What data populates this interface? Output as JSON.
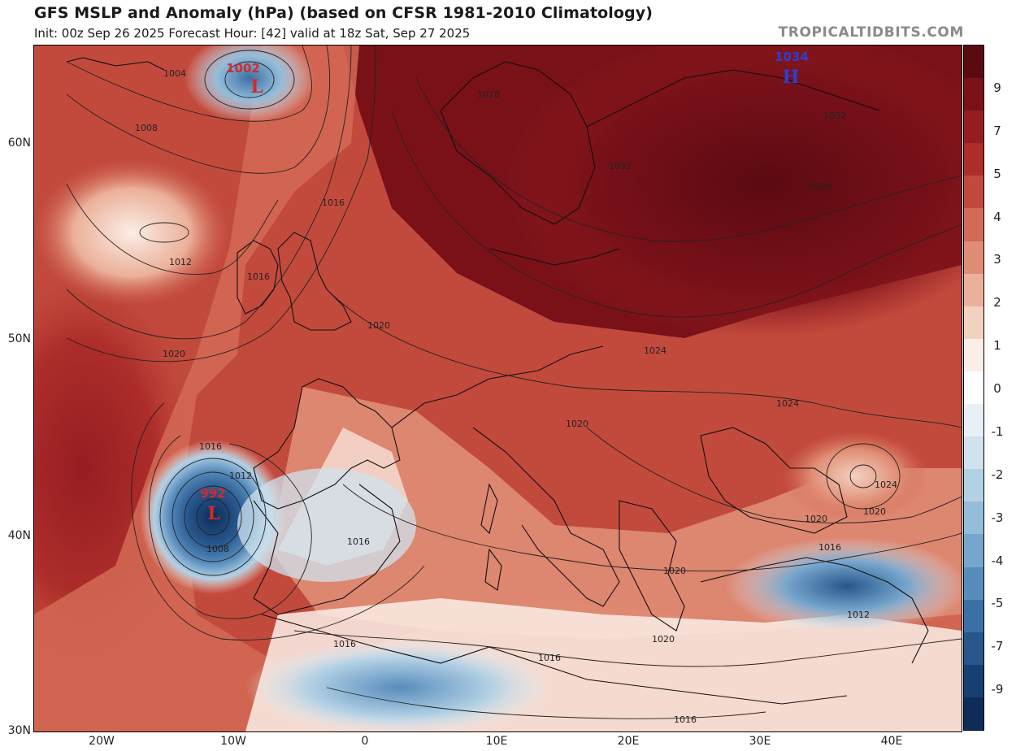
{
  "header": {
    "title": "GFS MSLP and Anomaly (hPa) (based on CFSR 1981-2010 Climatology)",
    "subtitle": "Init: 00z Sep 26 2025   Forecast Hour: [42]   valid at 18z Sat, Sep 27 2025",
    "brand": "TROPICALTIDBITS.COM"
  },
  "axes": {
    "latitude_labels": [
      "60N",
      "50N",
      "40N",
      "30N"
    ],
    "longitude_labels": [
      "20W",
      "10W",
      "0",
      "10E",
      "20E",
      "30E",
      "40E"
    ]
  },
  "colorbar": {
    "labels": [
      "9",
      "7",
      "5",
      "4",
      "3",
      "2",
      "1",
      "0",
      "-1",
      "-2",
      "-3",
      "-4",
      "-5",
      "-7",
      "-9"
    ],
    "colors": [
      "#5c0a12",
      "#7a1119",
      "#951d22",
      "#ad2d2a",
      "#c24a3d",
      "#d36a55",
      "#e08d75",
      "#ebb099",
      "#f3d1c0",
      "#fbeee6",
      "#ffffff",
      "#e7f0f6",
      "#cfe2ee",
      "#b3d1e5",
      "#94bdd9",
      "#76a6cc",
      "#578cbb",
      "#3b70a6",
      "#27568d",
      "#163f72",
      "#0d2c57"
    ]
  },
  "pressure_centers": [
    {
      "type": "L",
      "value": "1002",
      "color": "#d42a2a"
    },
    {
      "type": "H",
      "value": "1034",
      "color": "#2a3fd4"
    },
    {
      "type": "L",
      "value": "992",
      "color": "#d42a2a"
    }
  ],
  "isobar_labels": [
    "1004",
    "1008",
    "1012",
    "1016",
    "1016",
    "1020",
    "1016",
    "1012",
    "1008",
    "1016",
    "1020",
    "1024",
    "1028",
    "1028",
    "1032",
    "1032",
    "1024",
    "1020",
    "1024",
    "1020",
    "1020",
    "1020",
    "1016",
    "1012",
    "1020",
    "1016",
    "1016",
    "1016"
  ]
}
